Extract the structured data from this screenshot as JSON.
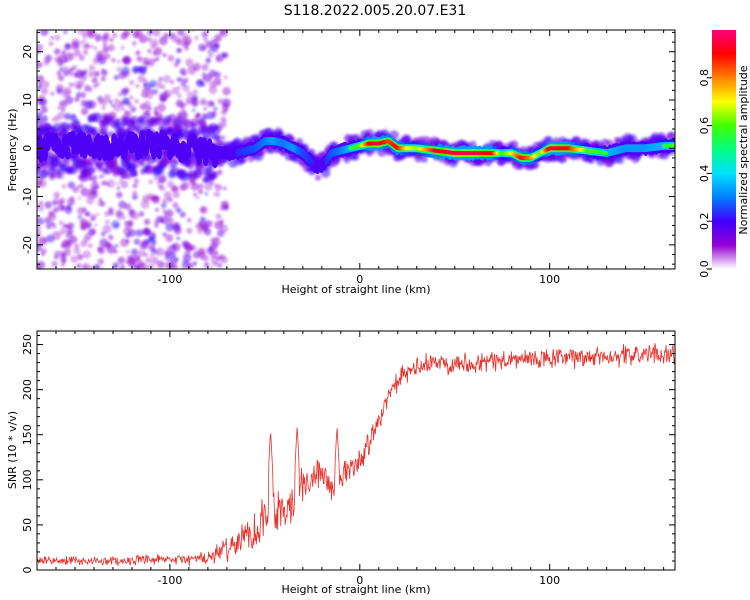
{
  "title": "S118.2022.005.20.07.E31",
  "chart_data": [
    {
      "type": "heatmap",
      "xlabel": "Height of straight line (km)",
      "ylabel": "Frequency (Hz)",
      "xlim": [
        -170,
        166
      ],
      "ylim": [
        -25,
        24.5
      ],
      "xticks": [
        -100,
        0,
        100
      ],
      "yticks": [
        -20,
        -10,
        0,
        10,
        20
      ],
      "grid": false,
      "colorbar": {
        "label": "Normalized spectral amplitude",
        "range": [
          0,
          1
        ],
        "ticks": [
          0.0,
          0.2,
          0.4,
          0.6,
          0.8
        ],
        "colormap": [
          "#ffffff",
          "#9400d3",
          "#4000ff",
          "#0080ff",
          "#00e0ff",
          "#00ff80",
          "#40ff00",
          "#ffff00",
          "#ff8000",
          "#ff0000",
          "#ff0080"
        ]
      },
      "ridge": {
        "x": [
          -170,
          -150,
          -130,
          -110,
          -90,
          -75,
          -65,
          -55,
          -50,
          -45,
          -40,
          -35,
          -30,
          -25,
          -22,
          -18,
          -15,
          -10,
          -5,
          0,
          5,
          10,
          15,
          20,
          25,
          30,
          40,
          50,
          60,
          70,
          75,
          80,
          85,
          90,
          95,
          100,
          110,
          120,
          130,
          140,
          150,
          160,
          166
        ],
        "y": [
          0,
          1,
          0,
          1,
          0,
          -1,
          -1,
          0,
          1.5,
          1.5,
          1,
          0,
          -1,
          -3,
          -4,
          -3,
          -1,
          -0.5,
          0,
          0.5,
          1,
          1,
          1.5,
          0,
          0,
          0,
          -0.5,
          -1,
          -1,
          -1,
          -1,
          -1,
          -2,
          -2,
          -1,
          0,
          0,
          -0.5,
          -1,
          0,
          0,
          0.5,
          0.5
        ],
        "amplitude": [
          0.25,
          0.28,
          0.3,
          0.3,
          0.28,
          0.3,
          0.35,
          0.4,
          0.45,
          0.5,
          0.45,
          0.5,
          0.4,
          0.35,
          0.3,
          0.35,
          0.4,
          0.45,
          0.55,
          0.6,
          0.9,
          0.95,
          0.85,
          0.9,
          0.7,
          0.65,
          0.9,
          0.95,
          0.95,
          0.9,
          0.55,
          0.7,
          0.9,
          0.8,
          0.6,
          0.95,
          0.9,
          0.6,
          0.55,
          0.5,
          0.5,
          0.55,
          0.6
        ]
      }
    },
    {
      "type": "line",
      "xlabel": "Height of straight line (km)",
      "ylabel": "SNR (10 * v/v)",
      "xlim": [
        -170,
        166
      ],
      "ylim": [
        0,
        265
      ],
      "xticks": [
        -100,
        0,
        100
      ],
      "yticks": [
        0,
        50,
        100,
        150,
        200,
        250
      ],
      "grid": false,
      "series": [
        {
          "color": "#e8302a",
          "trend_x": [
            -170,
            -140,
            -100,
            -80,
            -75,
            -65,
            -55,
            -50,
            -45,
            -40,
            -35,
            -30,
            -25,
            -20,
            -15,
            -10,
            -5,
            0,
            5,
            10,
            15,
            20,
            30,
            40,
            60,
            80,
            100,
            120,
            140,
            166
          ],
          "trend_y": [
            10,
            10,
            11,
            13,
            18,
            30,
            45,
            60,
            65,
            70,
            80,
            95,
            100,
            110,
            90,
            100,
            115,
            120,
            140,
            170,
            190,
            210,
            225,
            230,
            230,
            233,
            234,
            236,
            238,
            240
          ],
          "noise": [
            5,
            5,
            6,
            8,
            10,
            18,
            25,
            32,
            32,
            30,
            28,
            22,
            20,
            18,
            15,
            15,
            15,
            15,
            15,
            14,
            12,
            12,
            12,
            12,
            12,
            12,
            12,
            12,
            12,
            12
          ],
          "peaks": [
            {
              "x": -47,
              "y": 155
            },
            {
              "x": -33,
              "y": 160
            },
            {
              "x": -12,
              "y": 160
            }
          ]
        }
      ]
    }
  ]
}
